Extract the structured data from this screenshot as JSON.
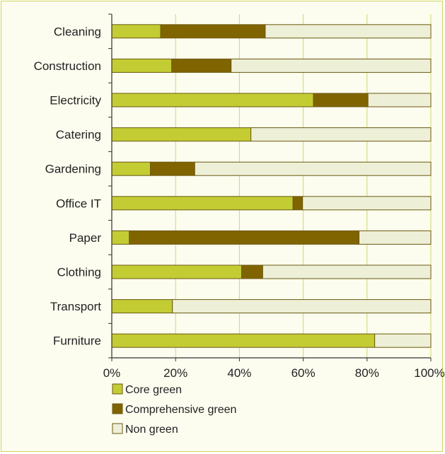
{
  "chart_data": {
    "type": "bar",
    "orientation": "horizontal",
    "stacked": true,
    "percent": true,
    "categories": [
      "Cleaning",
      "Construction",
      "Electricity",
      "Catering",
      "Gardening",
      "Office IT",
      "Paper",
      "Clothing",
      "Transport",
      "Furniture"
    ],
    "series": [
      {
        "name": "Core green",
        "color": "#c3cc33",
        "values": [
          15.3,
          18.8,
          63.2,
          43.6,
          12.1,
          56.8,
          5.5,
          40.7,
          19.0,
          82.4
        ]
      },
      {
        "name": "Comprehensive green",
        "color": "#806400",
        "values": [
          32.8,
          18.6,
          17.1,
          0,
          13.9,
          3.0,
          72.0,
          6.6,
          0,
          0
        ]
      },
      {
        "name": "Non green",
        "color": "#eeefd7",
        "values": [
          51.9,
          62.6,
          19.7,
          56.4,
          74.0,
          40.2,
          22.5,
          52.7,
          81.0,
          17.6
        ]
      }
    ],
    "xlim": [
      0,
      100
    ],
    "xticks": [
      "0%",
      "20%",
      "40%",
      "60%",
      "80%",
      "100%"
    ],
    "grid": "vertical",
    "legend_position": "bottom-left",
    "title": "",
    "xlabel": "",
    "ylabel": ""
  }
}
